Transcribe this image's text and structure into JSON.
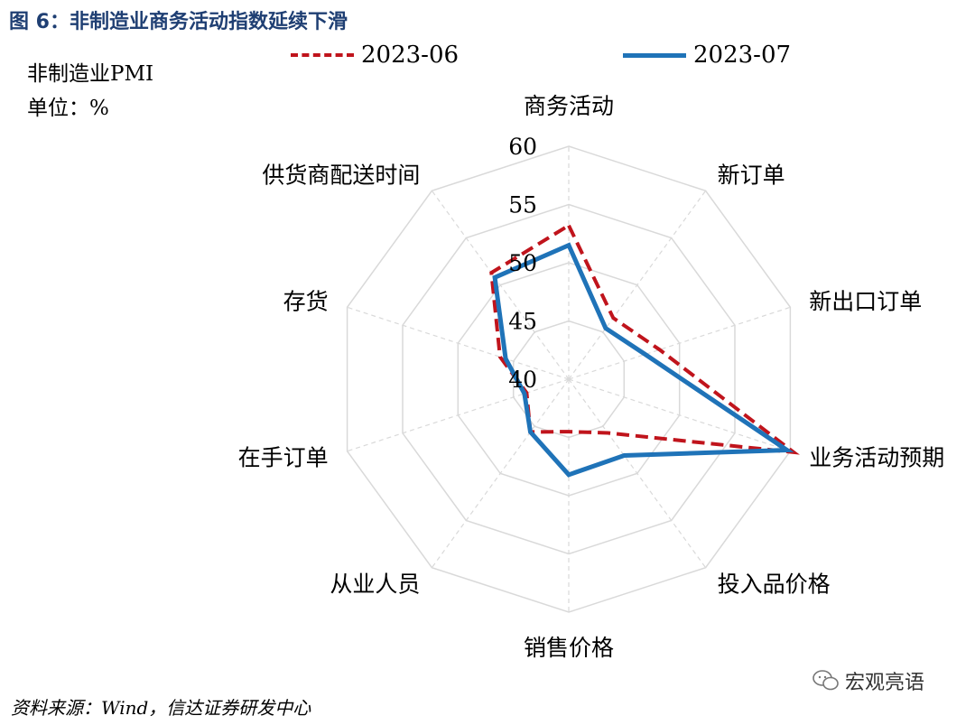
{
  "header": {
    "figure_title": "图 6：非制造业商务活动指数延续下滑",
    "subtitle": "非制造业PMI",
    "unit": "单位：%"
  },
  "footer": {
    "source": "资料来源：Wind，信达证券研发中心",
    "watermark": "宏观亮语"
  },
  "colors": {
    "series_2023_06": "#c0141c",
    "series_2023_07": "#1f73b8",
    "grid": "#d9d9d9",
    "title": "#1f3f73"
  },
  "chart_data": {
    "type": "radar",
    "title": "",
    "categories": [
      "商务活动",
      "新订单",
      "新出口订单",
      "业务活动预期",
      "投入品价格",
      "销售价格",
      "从业人员",
      "在手订单",
      "存货",
      "供货商配送时间"
    ],
    "rlim": [
      40,
      60
    ],
    "ticks": [
      "40",
      "45",
      "50",
      "55",
      "60"
    ],
    "grid": true,
    "legend_position": "top",
    "series": [
      {
        "name": "2023-06",
        "style": "dashed",
        "values": [
          53.2,
          46.5,
          48.2,
          60.3,
          45.7,
          44.5,
          45.6,
          43.8,
          46.2,
          51.3
        ]
      },
      {
        "name": "2023-07",
        "style": "solid",
        "values": [
          51.5,
          45.4,
          46.9,
          59.7,
          48.1,
          48.2,
          45.6,
          44.0,
          45.7,
          50.8
        ]
      }
    ]
  }
}
